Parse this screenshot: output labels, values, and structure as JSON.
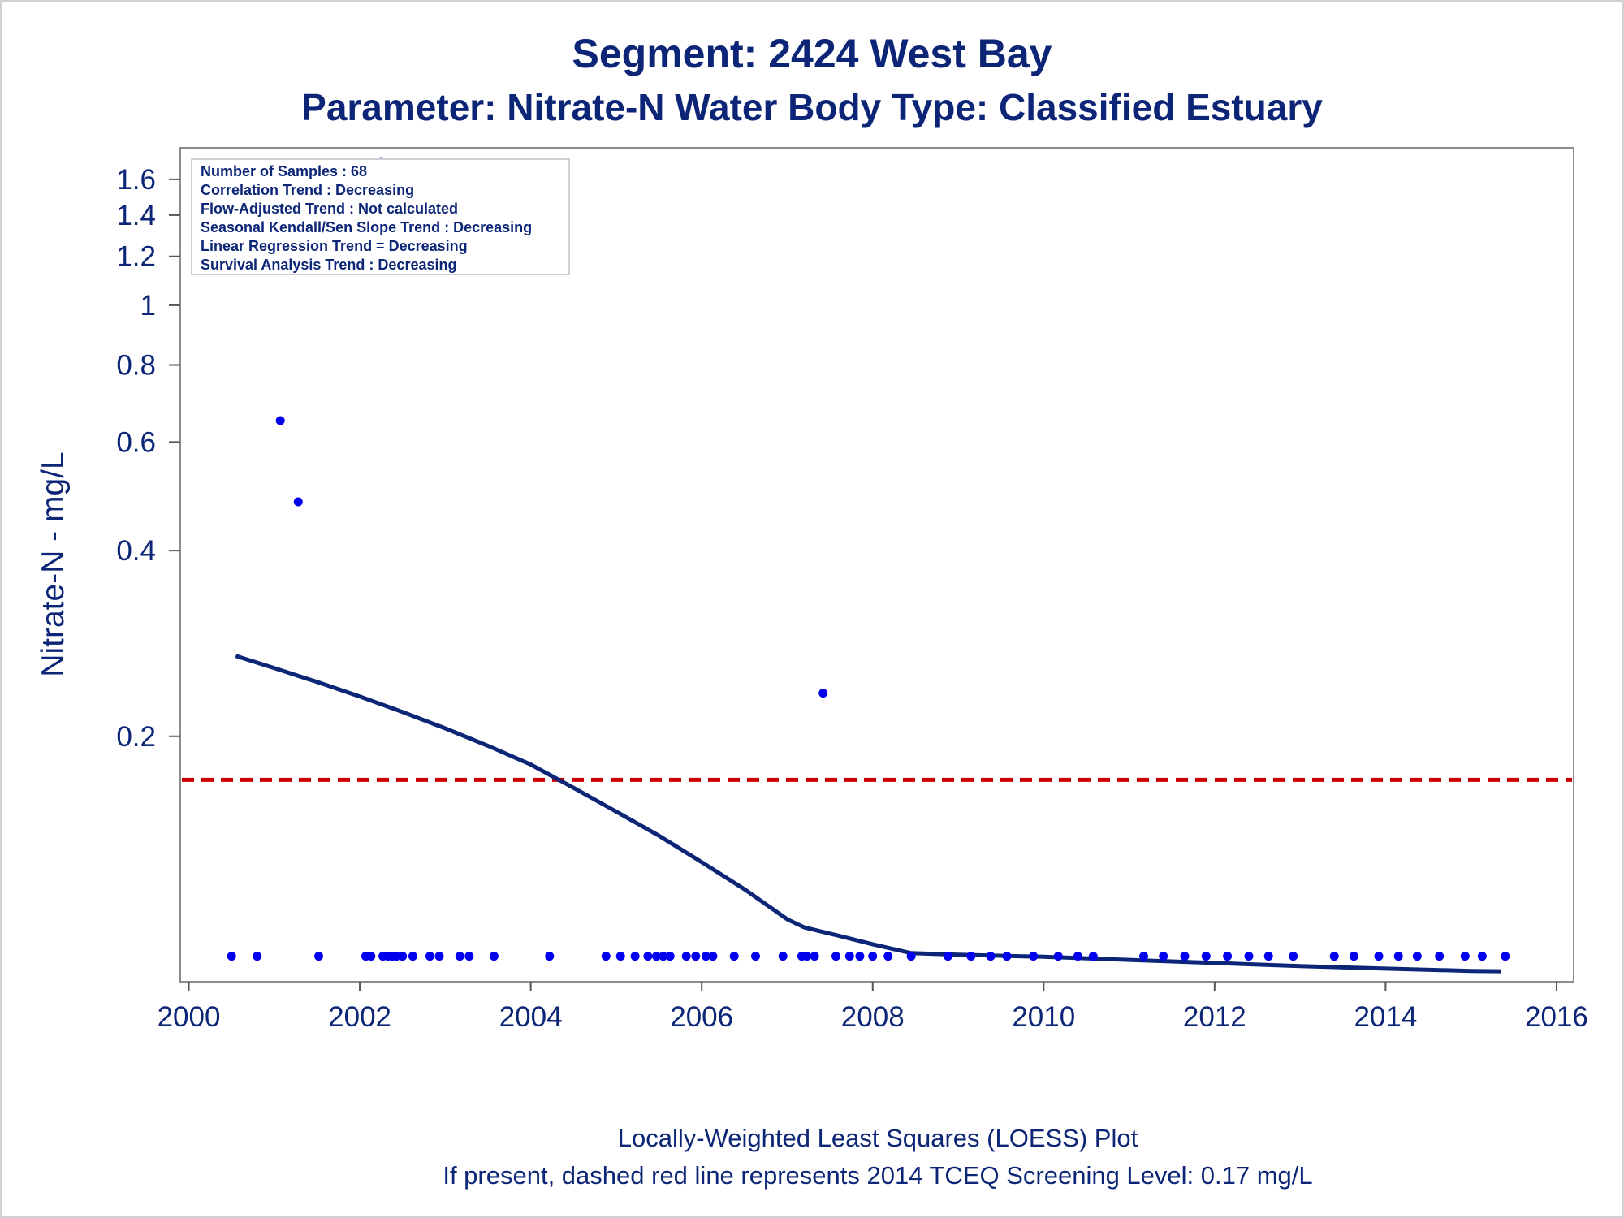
{
  "chart_data": {
    "type": "scatter",
    "title": "Segment: 2424  West Bay",
    "subtitle": "Parameter: Nitrate-N   Water Body Type: Classified Estuary",
    "ylabel": "Nitrate-N - mg/L",
    "xlabel": "",
    "xlim": [
      1999.9,
      2016.2
    ],
    "ylim": [
      0.08,
      1.8
    ],
    "y_scale": "log",
    "x_ticks": [
      2000,
      2002,
      2004,
      2006,
      2008,
      2010,
      2012,
      2014,
      2016
    ],
    "y_ticks": [
      0.2,
      0.4,
      0.6,
      0.8,
      1,
      1.2,
      1.4,
      1.6
    ],
    "x_tick_labels": [
      "2000",
      "2002",
      "2004",
      "2006",
      "2008",
      "2010",
      "2012",
      "2014",
      "2016"
    ],
    "y_tick_labels": [
      "0.2",
      "0.4",
      "0.6",
      "0.8",
      "1",
      "1.2",
      "1.4",
      "1.6"
    ],
    "grid": false,
    "colors": {
      "points": "#0000ee",
      "loess": "#0c2577",
      "screening": "#cc0000",
      "text": "#0c2577"
    },
    "points": {
      "x": [
        2000.5,
        2000.8,
        2001.07,
        2001.28,
        2001.52,
        2002.07,
        2002.13,
        2002.27,
        2002.33,
        2002.38,
        2002.43,
        2002.5,
        2002.62,
        2002.82,
        2002.93,
        2003.17,
        2003.28,
        2003.57,
        2004.22,
        2004.88,
        2005.05,
        2005.22,
        2005.37,
        2005.47,
        2005.55,
        2005.63,
        2005.82,
        2005.93,
        2006.05,
        2006.13,
        2006.38,
        2006.63,
        2006.95,
        2007.17,
        2007.23,
        2007.32,
        2007.57,
        2007.73,
        2007.85,
        2008.0,
        2008.18,
        2008.45,
        2008.88,
        2009.15,
        2009.38,
        2009.57,
        2009.88,
        2010.17,
        2010.4,
        2010.58,
        2011.17,
        2011.4,
        2011.65,
        2011.9,
        2012.15,
        2012.4,
        2012.63,
        2012.92,
        2013.4,
        2013.63,
        2013.92,
        2014.15,
        2014.37,
        2014.63,
        2014.93,
        2015.13,
        2015.4,
        2002.25
      ],
      "y": [
        0.088,
        0.088,
        0.65,
        0.48,
        0.088,
        0.088,
        0.088,
        0.088,
        0.088,
        0.088,
        0.088,
        0.088,
        0.088,
        0.088,
        0.088,
        0.088,
        0.088,
        0.088,
        0.088,
        0.088,
        0.088,
        0.088,
        0.088,
        0.088,
        0.088,
        0.088,
        0.088,
        0.088,
        0.088,
        0.088,
        0.088,
        0.088,
        0.088,
        0.088,
        0.088,
        0.088,
        0.088,
        0.088,
        0.088,
        0.088,
        0.088,
        0.088,
        0.088,
        0.088,
        0.088,
        0.088,
        0.088,
        0.088,
        0.088,
        0.088,
        0.088,
        0.088,
        0.088,
        0.088,
        0.088,
        0.088,
        0.088,
        0.088,
        0.088,
        0.088,
        0.088,
        0.088,
        0.088,
        0.088,
        0.088,
        0.088,
        0.088,
        1.72
      ]
    },
    "series": [
      {
        "values_x": [
          2007.42
        ],
        "values_y": [
          0.235
        ]
      }
    ],
    "loess": {
      "x": [
        2000.55,
        2001.0,
        2001.5,
        2002.0,
        2002.5,
        2003.0,
        2003.5,
        2004.0,
        2004.5,
        2005.0,
        2005.5,
        2006.0,
        2006.5,
        2007.0,
        2007.2,
        2007.6,
        2008.0,
        2008.45,
        2009.0,
        2010.0,
        2011.0,
        2012.0,
        2013.0,
        2014.0,
        2015.0,
        2015.35
      ],
      "y": [
        0.27,
        0.258,
        0.245,
        0.232,
        0.219,
        0.206,
        0.193,
        0.18,
        0.165,
        0.151,
        0.138,
        0.125,
        0.113,
        0.101,
        0.098,
        0.095,
        0.092,
        0.089,
        0.0885,
        0.0878,
        0.0868,
        0.0858,
        0.0848,
        0.084,
        0.0833,
        0.0832
      ]
    },
    "screening_level": 0.17,
    "info_box": {
      "position": "top-left",
      "lines": [
        "Number of Samples : 68",
        "Correlation Trend : Decreasing",
        "Flow-Adjusted Trend : Not calculated",
        "Seasonal Kendall/Sen Slope Trend : Decreasing",
        "Linear Regression Trend = Decreasing",
        "Survival Analysis Trend : Decreasing"
      ]
    },
    "footnotes": [
      "Locally-Weighted Least Squares (LOESS) Plot",
      "If present, dashed red line represents 2014 TCEQ Screening Level: 0.17 mg/L"
    ]
  }
}
